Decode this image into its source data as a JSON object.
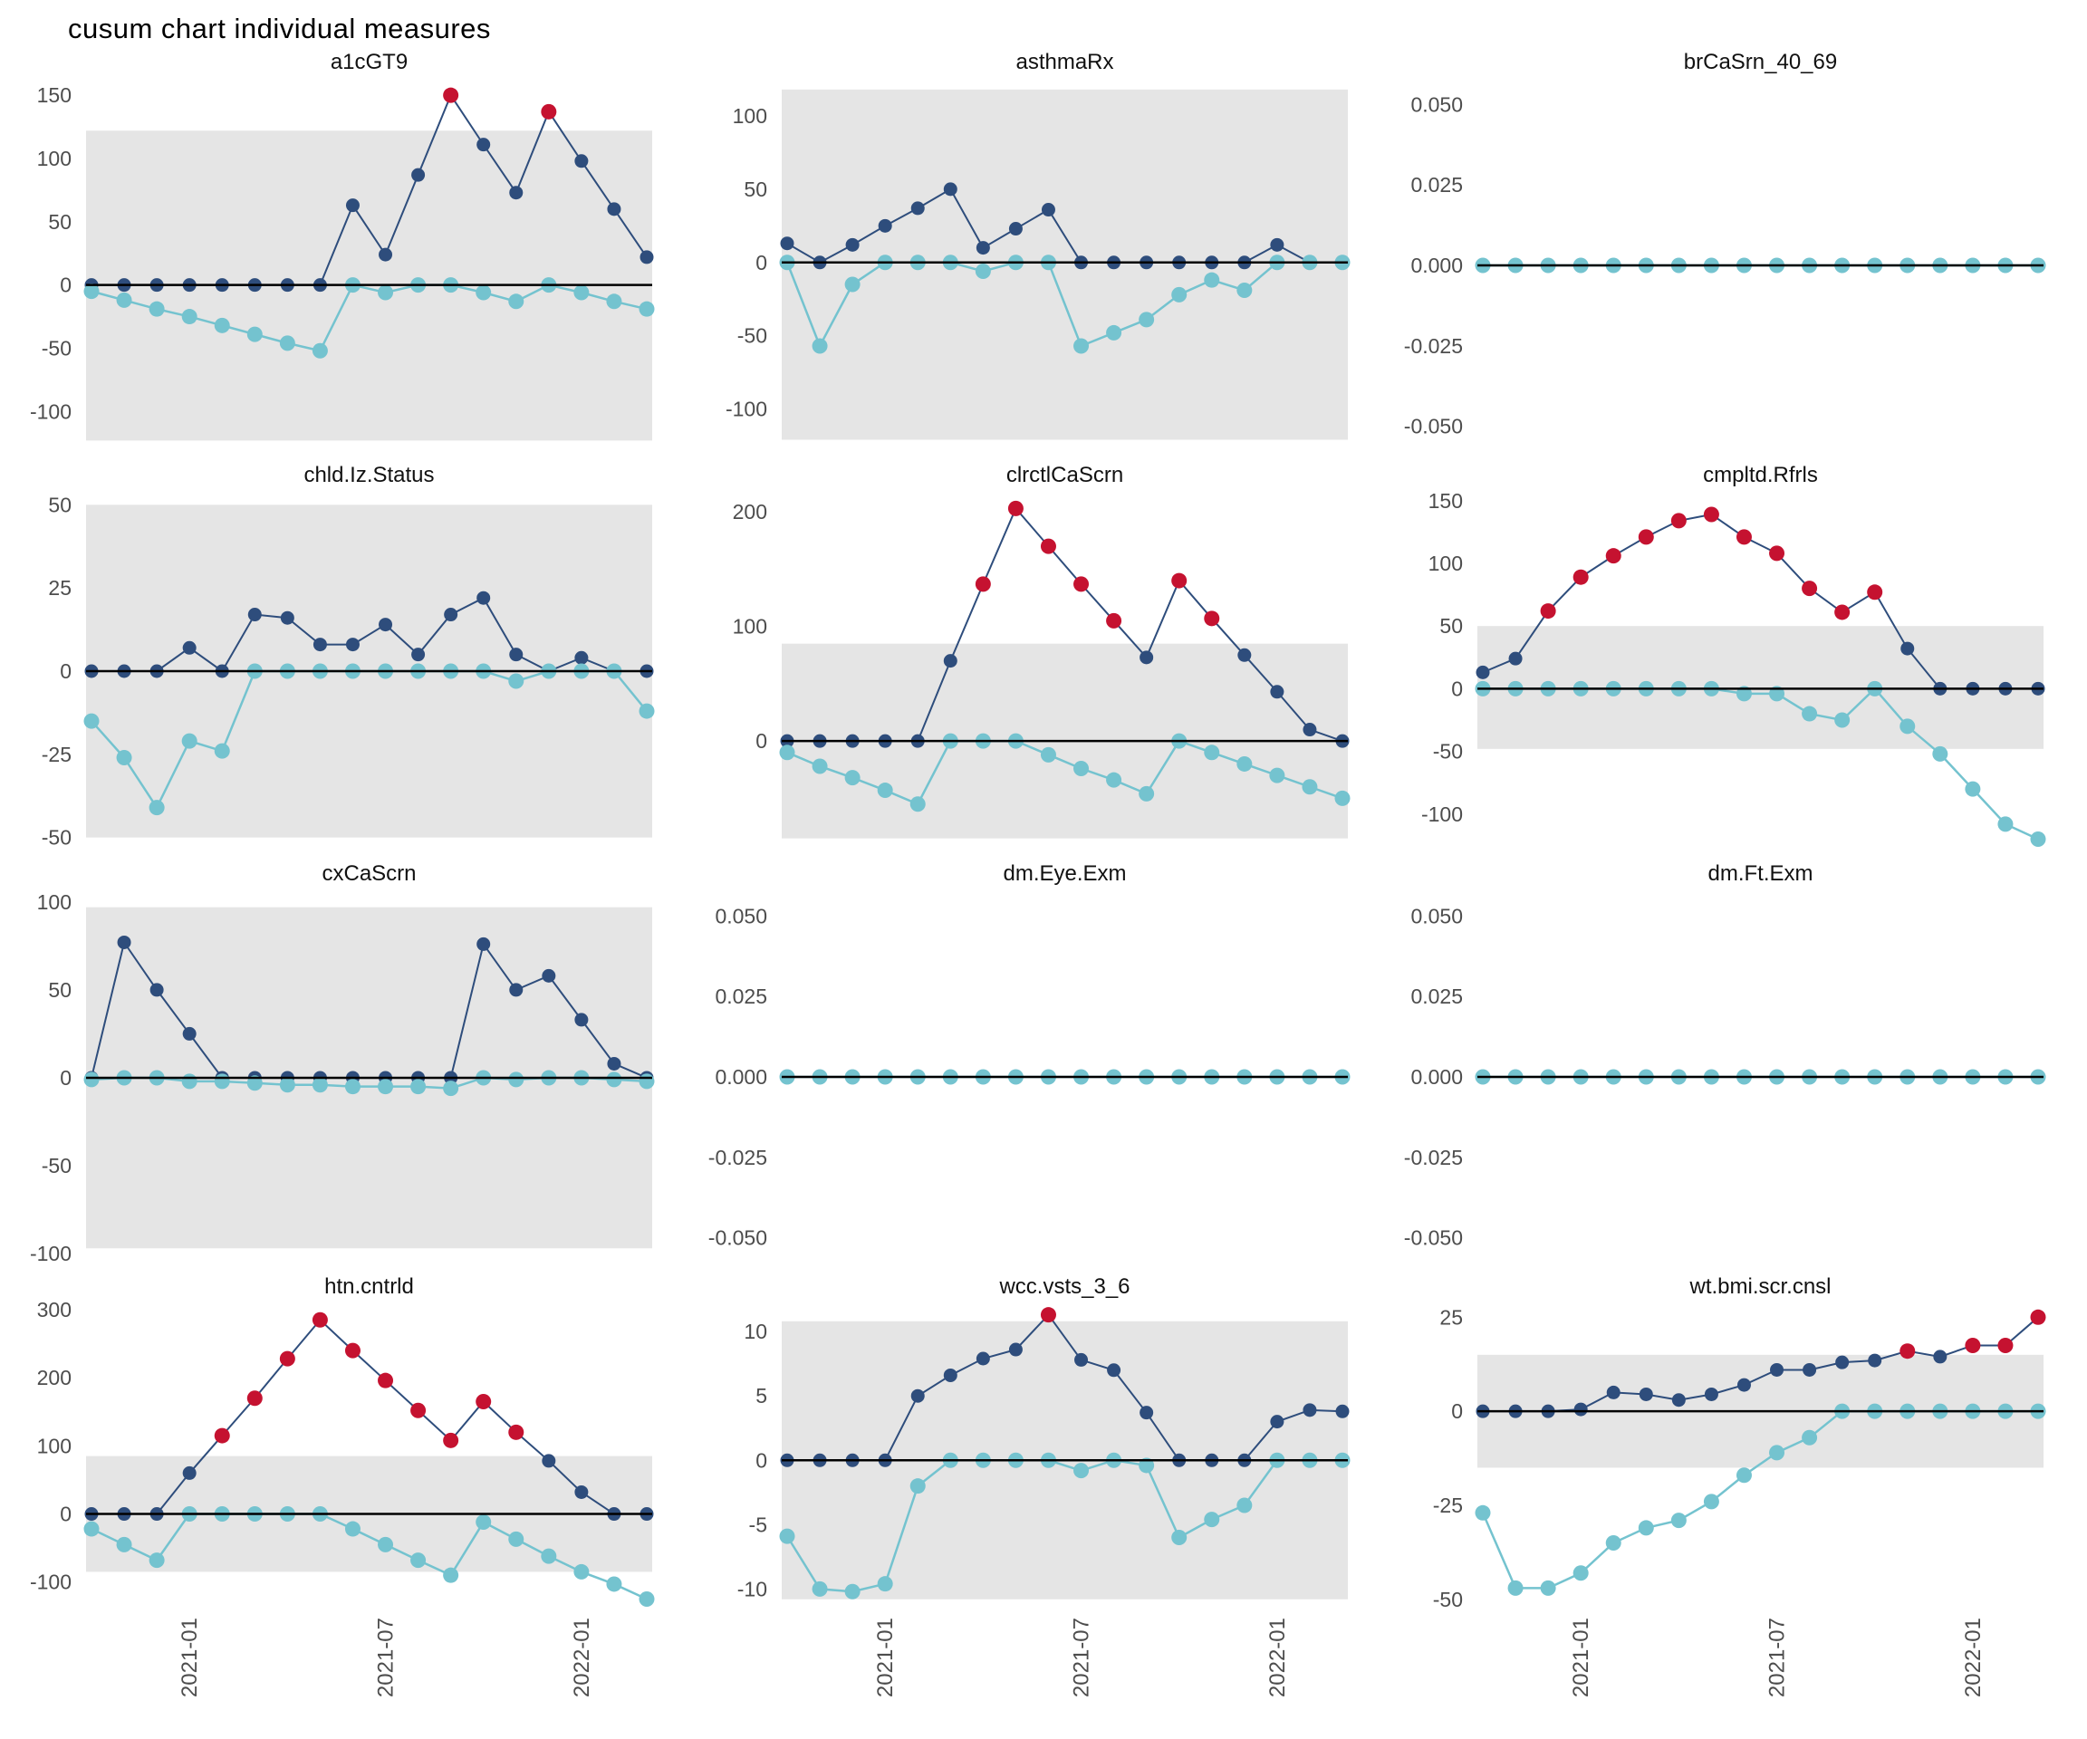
{
  "chart_data": {
    "type": "line",
    "title": "cusum chart  individual measures",
    "x": [
      "2020-10",
      "2020-11",
      "2020-12",
      "2021-01",
      "2021-02",
      "2021-03",
      "2021-04",
      "2021-05",
      "2021-06",
      "2021-07",
      "2021-08",
      "2021-09",
      "2021-10",
      "2021-11",
      "2021-12",
      "2022-01",
      "2022-02",
      "2022-03"
    ],
    "x_axis": {
      "tick_indices": [
        3,
        9,
        15
      ],
      "tick_labels": [
        "2021-01",
        "2021-07",
        "2022-01"
      ],
      "shown_on": "bottom-row-only",
      "rotation": 90
    },
    "legend": "none",
    "grid": "off",
    "colors": {
      "upper": "#2e4d7c",
      "lower": "#74c3cf",
      "out_of_control": "#c51230",
      "band": "#e5e5e5",
      "zero_line": "#000000",
      "axis_text": "#4d4d4d",
      "facet_title": "#111111"
    },
    "facets": [
      {
        "name": "a1cGT9",
        "ylim": [
          -127,
          158
        ],
        "band": [
          -123,
          122
        ],
        "yticks": [
          {
            "v": 150,
            "l": "150"
          },
          {
            "v": 100,
            "l": "100"
          },
          {
            "v": 50,
            "l": "50"
          },
          {
            "v": 0,
            "l": "0"
          },
          {
            "v": -50,
            "l": "-50"
          },
          {
            "v": -100,
            "l": "-100"
          }
        ],
        "upper": [
          0,
          0,
          0,
          0,
          0,
          0,
          0,
          0,
          63,
          24,
          87,
          150,
          111,
          73,
          137,
          98,
          60,
          22
        ],
        "upper_red": [
          11,
          14
        ],
        "lower": [
          -5,
          -12,
          -19,
          -25,
          -32,
          -39,
          -46,
          -52,
          0,
          -6,
          0,
          0,
          -6,
          -13,
          0,
          -6,
          -13,
          -19
        ]
      },
      {
        "name": "asthmaRx",
        "ylim": [
          -125,
          121
        ],
        "band": [
          -121,
          118
        ],
        "yticks": [
          {
            "v": 100,
            "l": "100"
          },
          {
            "v": 50,
            "l": "50"
          },
          {
            "v": 0,
            "l": "0"
          },
          {
            "v": -50,
            "l": "-50"
          },
          {
            "v": -100,
            "l": "-100"
          }
        ],
        "upper": [
          13,
          0,
          12,
          25,
          37,
          50,
          10,
          23,
          36,
          0,
          0,
          0,
          0,
          0,
          0,
          12,
          0,
          0
        ],
        "upper_red": [],
        "lower": [
          0,
          -57,
          -15,
          0,
          0,
          0,
          -6,
          0,
          0,
          -57,
          -48,
          -39,
          -22,
          -12,
          -19,
          0,
          0,
          0
        ]
      },
      {
        "name": "brCaSrn_40_69",
        "ylim": [
          -0.056,
          0.056
        ],
        "band": null,
        "yticks": [
          {
            "v": 0.05,
            "l": "0.050"
          },
          {
            "v": 0.025,
            "l": "0.025"
          },
          {
            "v": 0,
            "l": "0.000"
          },
          {
            "v": -0.025,
            "l": "-0.025"
          },
          {
            "v": -0.05,
            "l": "-0.050"
          }
        ],
        "upper": [
          0,
          0,
          0,
          0,
          0,
          0,
          0,
          0,
          0,
          0,
          0,
          0,
          0,
          0,
          0,
          0,
          0,
          0
        ],
        "upper_red": [],
        "lower": [
          0,
          0,
          0,
          0,
          0,
          0,
          0,
          0,
          0,
          0,
          0,
          0,
          0,
          0,
          0,
          0,
          0,
          0
        ]
      },
      {
        "name": "chld.Iz.Status",
        "ylim": [
          -52,
          52
        ],
        "band": [
          -50,
          50
        ],
        "yticks": [
          {
            "v": 50,
            "l": "50"
          },
          {
            "v": 25,
            "l": "25"
          },
          {
            "v": 0,
            "l": "0"
          },
          {
            "v": -25,
            "l": "-25"
          },
          {
            "v": -50,
            "l": "-50"
          }
        ],
        "upper": [
          0,
          0,
          0,
          7,
          0,
          17,
          16,
          8,
          8,
          14,
          5,
          17,
          22,
          5,
          0,
          4,
          0,
          0
        ],
        "upper_red": [],
        "lower": [
          -15,
          -26,
          -41,
          -21,
          -24,
          0,
          0,
          0,
          0,
          0,
          0,
          0,
          0,
          -3,
          0,
          0,
          0,
          -12
        ]
      },
      {
        "name": "clrctlCaScrn",
        "ylim": [
          -90,
          212
        ],
        "band": [
          -85,
          85
        ],
        "yticks": [
          {
            "v": 200,
            "l": "200"
          },
          {
            "v": 100,
            "l": "100"
          },
          {
            "v": 0,
            "l": "0"
          }
        ],
        "upper": [
          0,
          0,
          0,
          0,
          0,
          70,
          137,
          203,
          170,
          137,
          105,
          73,
          140,
          107,
          75,
          43,
          10,
          0
        ],
        "upper_red": [
          6,
          7,
          8,
          9,
          10,
          12,
          13
        ],
        "lower": [
          -10,
          -22,
          -32,
          -43,
          -55,
          0,
          0,
          0,
          -12,
          -24,
          -34,
          -46,
          0,
          -10,
          -20,
          -30,
          -40,
          -50
        ]
      },
      {
        "name": "cmpltd.Rfrls",
        "ylim": [
          -124,
          152
        ],
        "band": [
          -48,
          50
        ],
        "yticks": [
          {
            "v": 150,
            "l": "150"
          },
          {
            "v": 100,
            "l": "100"
          },
          {
            "v": 50,
            "l": "50"
          },
          {
            "v": 0,
            "l": "0"
          },
          {
            "v": -50,
            "l": "-50"
          },
          {
            "v": -100,
            "l": "-100"
          }
        ],
        "upper": [
          13,
          24,
          62,
          89,
          106,
          121,
          134,
          139,
          121,
          108,
          80,
          61,
          77,
          32,
          0,
          0,
          0,
          0
        ],
        "upper_red": [
          2,
          3,
          4,
          5,
          6,
          7,
          8,
          9,
          10,
          11,
          12
        ],
        "lower": [
          0,
          0,
          0,
          0,
          0,
          0,
          0,
          0,
          -4,
          -4,
          -20,
          -25,
          0,
          -30,
          -52,
          -80,
          -108,
          -120
        ]
      },
      {
        "name": "cxCaScrn",
        "ylim": [
          -102,
          103
        ],
        "band": [
          -97,
          97
        ],
        "yticks": [
          {
            "v": 100,
            "l": "100"
          },
          {
            "v": 50,
            "l": "50"
          },
          {
            "v": 0,
            "l": "0"
          },
          {
            "v": -50,
            "l": "-50"
          },
          {
            "v": -100,
            "l": "-100"
          }
        ],
        "upper": [
          0,
          77,
          50,
          25,
          0,
          0,
          0,
          0,
          0,
          0,
          0,
          0,
          76,
          50,
          58,
          33,
          8,
          0
        ],
        "upper_red": [],
        "lower": [
          -1,
          0,
          0,
          -2,
          -2,
          -3,
          -4,
          -4,
          -5,
          -5,
          -5,
          -6,
          0,
          -1,
          0,
          0,
          -1,
          -2
        ]
      },
      {
        "name": "dm.Eye.Exm",
        "ylim": [
          -0.056,
          0.056
        ],
        "band": null,
        "yticks": [
          {
            "v": 0.05,
            "l": "0.050"
          },
          {
            "v": 0.025,
            "l": "0.025"
          },
          {
            "v": 0,
            "l": "0.000"
          },
          {
            "v": -0.025,
            "l": "-0.025"
          },
          {
            "v": -0.05,
            "l": "-0.050"
          }
        ],
        "upper": [
          0,
          0,
          0,
          0,
          0,
          0,
          0,
          0,
          0,
          0,
          0,
          0,
          0,
          0,
          0,
          0,
          0,
          0
        ],
        "upper_red": [],
        "lower": [
          0,
          0,
          0,
          0,
          0,
          0,
          0,
          0,
          0,
          0,
          0,
          0,
          0,
          0,
          0,
          0,
          0,
          0
        ]
      },
      {
        "name": "dm.Ft.Exm",
        "ylim": [
          -0.056,
          0.056
        ],
        "band": null,
        "yticks": [
          {
            "v": 0.05,
            "l": "0.050"
          },
          {
            "v": 0.025,
            "l": "0.025"
          },
          {
            "v": 0,
            "l": "0.000"
          },
          {
            "v": -0.025,
            "l": "-0.025"
          },
          {
            "v": -0.05,
            "l": "-0.050"
          }
        ],
        "upper": [
          0,
          0,
          0,
          0,
          0,
          0,
          0,
          0,
          0,
          0,
          0,
          0,
          0,
          0,
          0,
          0,
          0,
          0
        ],
        "upper_red": [],
        "lower": [
          0,
          0,
          0,
          0,
          0,
          0,
          0,
          0,
          0,
          0,
          0,
          0,
          0,
          0,
          0,
          0,
          0,
          0
        ]
      },
      {
        "name": "htn.cntrld",
        "ylim": [
          -131,
          300
        ],
        "band": [
          -85,
          85
        ],
        "yticks": [
          {
            "v": 300,
            "l": "300"
          },
          {
            "v": 200,
            "l": "200"
          },
          {
            "v": 100,
            "l": "100"
          },
          {
            "v": 0,
            "l": "0"
          },
          {
            "v": -100,
            "l": "-100"
          }
        ],
        "upper": [
          0,
          0,
          0,
          60,
          115,
          170,
          228,
          285,
          240,
          196,
          152,
          108,
          165,
          120,
          78,
          32,
          0,
          0
        ],
        "upper_red": [
          4,
          5,
          6,
          7,
          8,
          9,
          10,
          11,
          12,
          13
        ],
        "lower": [
          -22,
          -45,
          -68,
          0,
          0,
          0,
          0,
          0,
          -22,
          -45,
          -68,
          -90,
          -12,
          -37,
          -62,
          -85,
          -103,
          -125
        ]
      },
      {
        "name": "wcc.vsts_3_6",
        "ylim": [
          -11.1,
          11.7
        ],
        "band": [
          -10.8,
          10.8
        ],
        "yticks": [
          {
            "v": 10,
            "l": "10"
          },
          {
            "v": 5,
            "l": "5"
          },
          {
            "v": 0,
            "l": "0"
          },
          {
            "v": -5,
            "l": "-5"
          },
          {
            "v": -10,
            "l": "-10"
          }
        ],
        "upper": [
          0,
          0,
          0,
          0,
          5,
          6.6,
          7.9,
          8.6,
          11.3,
          7.8,
          7,
          3.7,
          0,
          0,
          0,
          3,
          3.9,
          3.8
        ],
        "upper_red": [
          8
        ],
        "lower": [
          -5.9,
          -10,
          -10.2,
          -9.6,
          -2,
          0,
          0,
          0,
          0,
          -0.8,
          0,
          -0.4,
          -6,
          -4.6,
          -3.5,
          0,
          0,
          0
        ]
      },
      {
        "name": "wt.bmi.scr.cnsl",
        "ylim": [
          -51,
          27
        ],
        "band": [
          -15,
          15
        ],
        "yticks": [
          {
            "v": 25,
            "l": "25"
          },
          {
            "v": 0,
            "l": "0"
          },
          {
            "v": -25,
            "l": "-25"
          },
          {
            "v": -50,
            "l": "-50"
          }
        ],
        "upper": [
          0,
          0,
          0,
          0.5,
          5,
          4.5,
          3,
          4.5,
          7,
          11,
          11,
          13,
          13.5,
          16,
          14.5,
          17.5,
          17.5,
          25
        ],
        "upper_red": [
          13,
          15,
          16,
          17
        ],
        "lower": [
          -27,
          -47,
          -47,
          -43,
          -35,
          -31,
          -29,
          -24,
          -17,
          -11,
          -7,
          0,
          0,
          0,
          0,
          0,
          0,
          0
        ]
      }
    ]
  }
}
